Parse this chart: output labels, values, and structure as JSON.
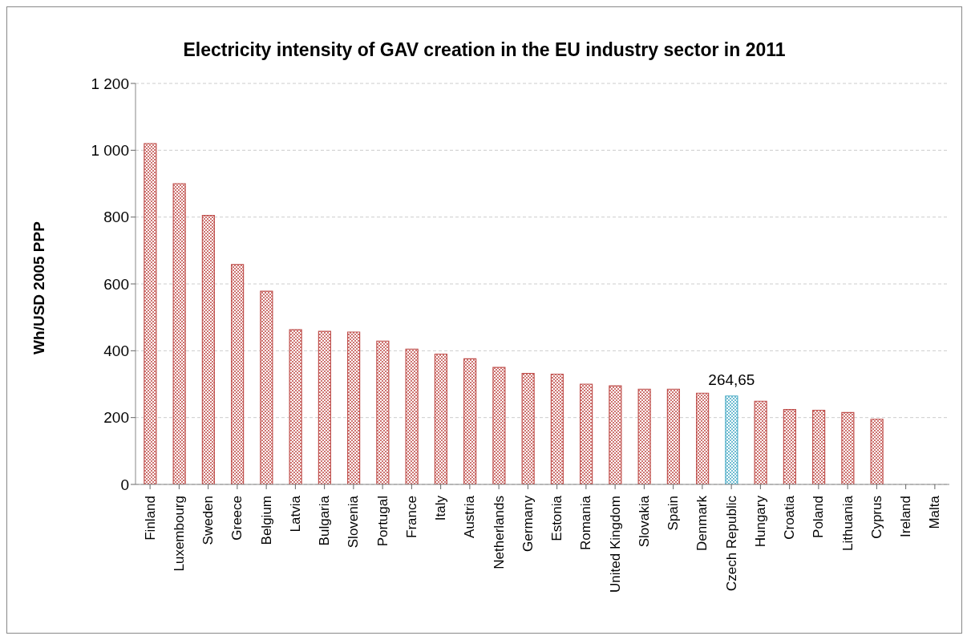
{
  "chart_data": {
    "type": "bar",
    "title": "Electricity intensity of GAV creation in the EU industry sector in 2011",
    "ylabel": "Wh/USD 2005 PPP",
    "categories": [
      "Finland",
      "Luxembourg",
      "Sweden",
      "Greece",
      "Belgium",
      "Latvia",
      "Bulgaria",
      "Slovenia",
      "Portugal",
      "France",
      "Italy",
      "Austria",
      "Netherlands",
      "Germany",
      "Estonia",
      "Romania",
      "United Kingdom",
      "Slovakia",
      "Spain",
      "Denmark",
      "Czech Republic",
      "Hungary",
      "Croatia",
      "Poland",
      "Lithuania",
      "Cyprus",
      "Ireland",
      "Malta"
    ],
    "values": [
      1020,
      900,
      805,
      658,
      578,
      463,
      458,
      456,
      429,
      405,
      390,
      376,
      350,
      332,
      330,
      300,
      295,
      285,
      285,
      273,
      264.65,
      249,
      224,
      222,
      215,
      195,
      null,
      null
    ],
    "colors": [
      "#c0504d",
      "#c0504d",
      "#c0504d",
      "#c0504d",
      "#c0504d",
      "#c0504d",
      "#c0504d",
      "#c0504d",
      "#c0504d",
      "#c0504d",
      "#c0504d",
      "#c0504d",
      "#c0504d",
      "#c0504d",
      "#c0504d",
      "#c0504d",
      "#c0504d",
      "#c0504d",
      "#c0504d",
      "#c0504d",
      "#4bacc6",
      "#c0504d",
      "#c0504d",
      "#c0504d",
      "#c0504d",
      "#c0504d",
      "#c0504d",
      "#c0504d"
    ],
    "value_labels": [
      null,
      null,
      null,
      null,
      null,
      null,
      null,
      null,
      null,
      null,
      null,
      null,
      null,
      null,
      null,
      null,
      null,
      null,
      null,
      null,
      "264,65",
      null,
      null,
      null,
      null,
      null,
      null,
      null
    ],
    "ylim": [
      0,
      1200
    ],
    "yticks": [
      0,
      200,
      400,
      600,
      800,
      {
        "value": 1000,
        "label": "1 000"
      },
      {
        "value": 1200,
        "label": "1 200"
      }
    ],
    "grid": "y"
  }
}
